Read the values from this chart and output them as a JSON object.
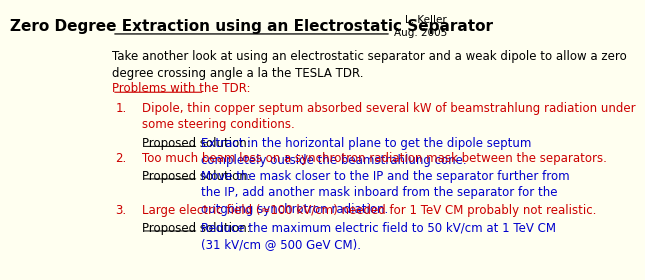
{
  "title": "Zero Degree Extraction using an Electrostatic Separator",
  "author": "L. Keller\nAug. 2005",
  "background_color": "#fffff0",
  "intro_text": "Take another look at using an electrostatic separator and a weak dipole to allow a zero\ndegree crossing angle a la the TESLA TDR.",
  "section_header": "Problems with the TDR:",
  "items": [
    {
      "number": "1.",
      "main_text": "Dipole, thin copper septum absorbed several kW of beamstrahlung radiation under\nsome steering conditions.",
      "proposed_label": "Proposed solution:",
      "proposed_text": "Extract in the horizontal plane to get the dipole septum\ncompletely outside the beamstrahlung cone."
    },
    {
      "number": "2.",
      "main_text": "Too much beam loss on a synchrotron radiation mask between the separators.",
      "proposed_label": "Proposed solution:",
      "proposed_text": "Move the mask closer to the IP and the separator further from\nthe IP, add another mask inboard from the separator for the\noutgoing synchrotron radiation."
    },
    {
      "number": "3.",
      "main_text": "Large electric field (≈100 kV/cm) needed for 1 TeV CM probably not realistic.",
      "proposed_label": "Proposed solution:",
      "proposed_text": "Reduce the maximum electric field to 50 kV/cm at 1 TeV CM\n(31 kV/cm @ 500 GeV CM)."
    }
  ],
  "color_red": "#cc0000",
  "color_blue": "#0000cc",
  "color_black": "#000000",
  "title_fontsize": 11,
  "body_fontsize": 8.5,
  "author_fontsize": 7.5
}
